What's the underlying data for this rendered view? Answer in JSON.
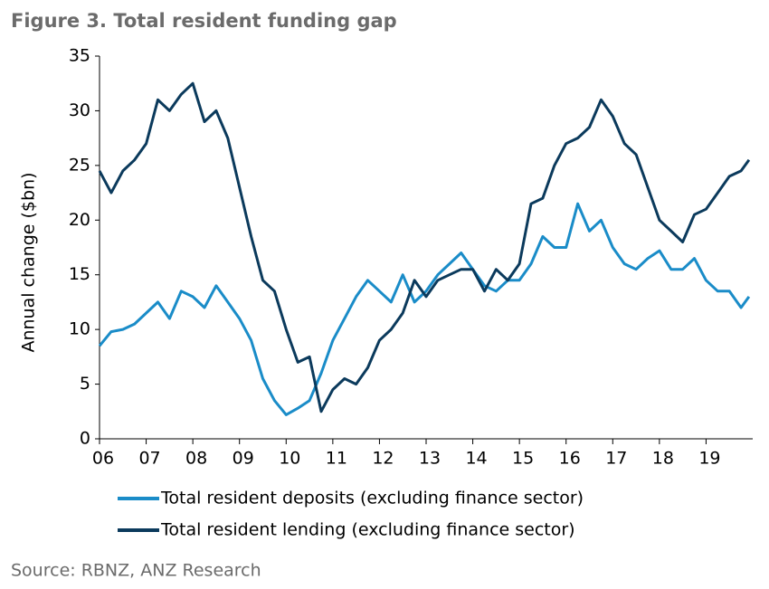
{
  "chart_data": {
    "type": "line",
    "title": "Figure 3. Total resident funding gap",
    "y_label": "Annual change ($bn)",
    "source": "Source: RBNZ, ANZ Research",
    "xlim": [
      2006,
      2020
    ],
    "xticks": [
      {
        "value": 2006,
        "label": "06"
      },
      {
        "value": 2007,
        "label": "07"
      },
      {
        "value": 2008,
        "label": "08"
      },
      {
        "value": 2009,
        "label": "09"
      },
      {
        "value": 2010,
        "label": "10"
      },
      {
        "value": 2011,
        "label": "11"
      },
      {
        "value": 2012,
        "label": "12"
      },
      {
        "value": 2013,
        "label": "13"
      },
      {
        "value": 2014,
        "label": "14"
      },
      {
        "value": 2015,
        "label": "15"
      },
      {
        "value": 2016,
        "label": "16"
      },
      {
        "value": 2017,
        "label": "17"
      },
      {
        "value": 2018,
        "label": "18"
      },
      {
        "value": 2019,
        "label": "19"
      }
    ],
    "ylim": [
      0,
      35
    ],
    "yticks": [
      0,
      5,
      10,
      15,
      20,
      25,
      30,
      35
    ],
    "grid": false,
    "x": [
      2006,
      2006.25,
      2006.5,
      2006.75,
      2007,
      2007.25,
      2007.5,
      2007.75,
      2008,
      2008.25,
      2008.5,
      2008.75,
      2009,
      2009.25,
      2009.5,
      2009.75,
      2010,
      2010.25,
      2010.5,
      2010.75,
      2011,
      2011.25,
      2011.5,
      2011.75,
      2012,
      2012.25,
      2012.5,
      2012.75,
      2013,
      2013.25,
      2013.5,
      2013.75,
      2014,
      2014.25,
      2014.5,
      2014.75,
      2015,
      2015.25,
      2015.5,
      2015.75,
      2016,
      2016.25,
      2016.5,
      2016.75,
      2017,
      2017.25,
      2017.5,
      2017.75,
      2018,
      2018.25,
      2018.5,
      2018.75,
      2019,
      2019.25,
      2019.5,
      2019.75,
      2019.92
    ],
    "series": [
      {
        "name": "Total resident deposits (excluding finance sector)",
        "color": "#1a8cc8",
        "values": [
          8.5,
          9.8,
          10.0,
          10.5,
          11.5,
          12.5,
          11.0,
          13.5,
          13.0,
          12.0,
          14.0,
          12.5,
          11.0,
          9.0,
          5.5,
          3.5,
          2.2,
          2.8,
          3.5,
          6.0,
          9.0,
          11.0,
          13.0,
          14.5,
          13.5,
          12.5,
          15.0,
          12.5,
          13.5,
          15.0,
          16.0,
          17.0,
          15.5,
          14.0,
          13.5,
          14.5,
          14.5,
          16.0,
          18.5,
          17.5,
          17.5,
          21.5,
          19.0,
          20.0,
          17.5,
          16.0,
          15.5,
          16.5,
          17.2,
          15.5,
          15.5,
          16.5,
          14.5,
          13.5,
          13.5,
          12.0,
          13.0
        ]
      },
      {
        "name": "Total resident lending (excluding finance sector)",
        "color": "#0b3a5c",
        "values": [
          24.5,
          22.5,
          24.5,
          25.5,
          27.0,
          31.0,
          30.0,
          31.5,
          32.5,
          29.0,
          30.0,
          27.5,
          23.0,
          18.5,
          14.5,
          13.5,
          10.0,
          7.0,
          7.5,
          2.5,
          4.5,
          5.5,
          5.0,
          6.5,
          9.0,
          10.0,
          11.5,
          14.5,
          13.0,
          14.5,
          15.0,
          15.5,
          15.5,
          13.5,
          15.5,
          14.5,
          16.0,
          21.5,
          22.0,
          25.0,
          27.0,
          27.5,
          28.5,
          31.0,
          29.5,
          27.0,
          26.0,
          23.0,
          20.0,
          19.0,
          18.0,
          20.5,
          21.0,
          22.5,
          24.0,
          24.5,
          25.5
        ]
      }
    ]
  }
}
